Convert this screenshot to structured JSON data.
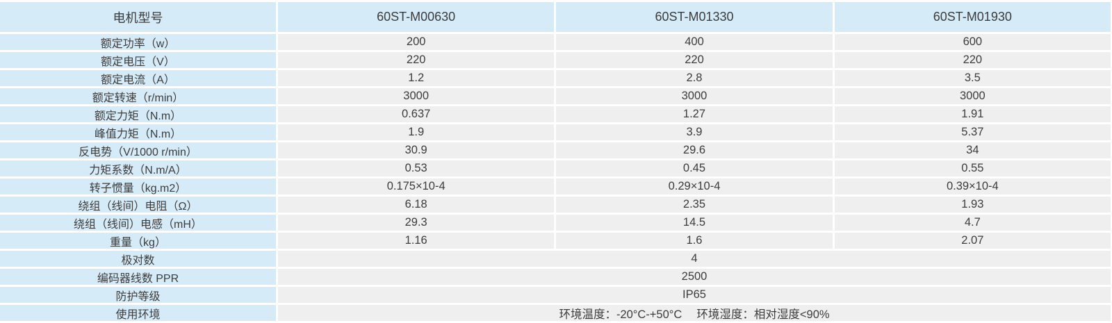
{
  "table": {
    "header": {
      "label": "电机型号",
      "models": [
        "60ST-M00630",
        "60ST-M01330",
        "60ST-M01930"
      ]
    },
    "rows": [
      {
        "label": "额定功率（w）",
        "values": [
          "200",
          "400",
          "600"
        ]
      },
      {
        "label": "额定电压（V）",
        "values": [
          "220",
          "220",
          "220"
        ]
      },
      {
        "label": "额定电流（A）",
        "values": [
          "1.2",
          "2.8",
          "3.5"
        ]
      },
      {
        "label": "额定转速（r/min）",
        "values": [
          "3000",
          "3000",
          "3000"
        ]
      },
      {
        "label": "额定力矩（N.m）",
        "values": [
          "0.637",
          "1.27",
          "1.91"
        ]
      },
      {
        "label": "峰值力矩（N.m）",
        "values": [
          "1.9",
          "3.9",
          "5.37"
        ]
      },
      {
        "label": "反电势（V/1000 r/min）",
        "values": [
          "30.9",
          "29.6",
          "34"
        ]
      },
      {
        "label": "力矩系数（N.m/A）",
        "values": [
          "0.53",
          "0.45",
          "0.55"
        ]
      },
      {
        "label": "转子惯量（kg.m2）",
        "values": [
          "0.175×10-4",
          "0.29×10-4",
          "0.39×10-4"
        ]
      },
      {
        "label": "绕组（线间）电阻（Ω）",
        "values": [
          "6.18",
          "2.35",
          "1.93"
        ]
      },
      {
        "label": "绕组（线间）电感（mH）",
        "values": [
          "29.3",
          "14.5",
          "4.7"
        ]
      },
      {
        "label": "重量（kg）",
        "values": [
          "1.16",
          "1.6",
          "2.07"
        ]
      }
    ],
    "span_rows": [
      {
        "label": "极对数",
        "value": "4"
      },
      {
        "label": "编码器线数 PPR",
        "value": "2500"
      },
      {
        "label": "防护等级",
        "value": "IP65"
      },
      {
        "label": "使用环境",
        "value": "环境温度：-20°C-+50°C　 环境湿度：相对湿度<90%"
      }
    ],
    "colors": {
      "header_bg": "#d6ebf8",
      "label_bg": "#d6ebf8",
      "value_bg": "#efefef",
      "separator": "#ffffff",
      "text": "#3c3c3c"
    }
  }
}
